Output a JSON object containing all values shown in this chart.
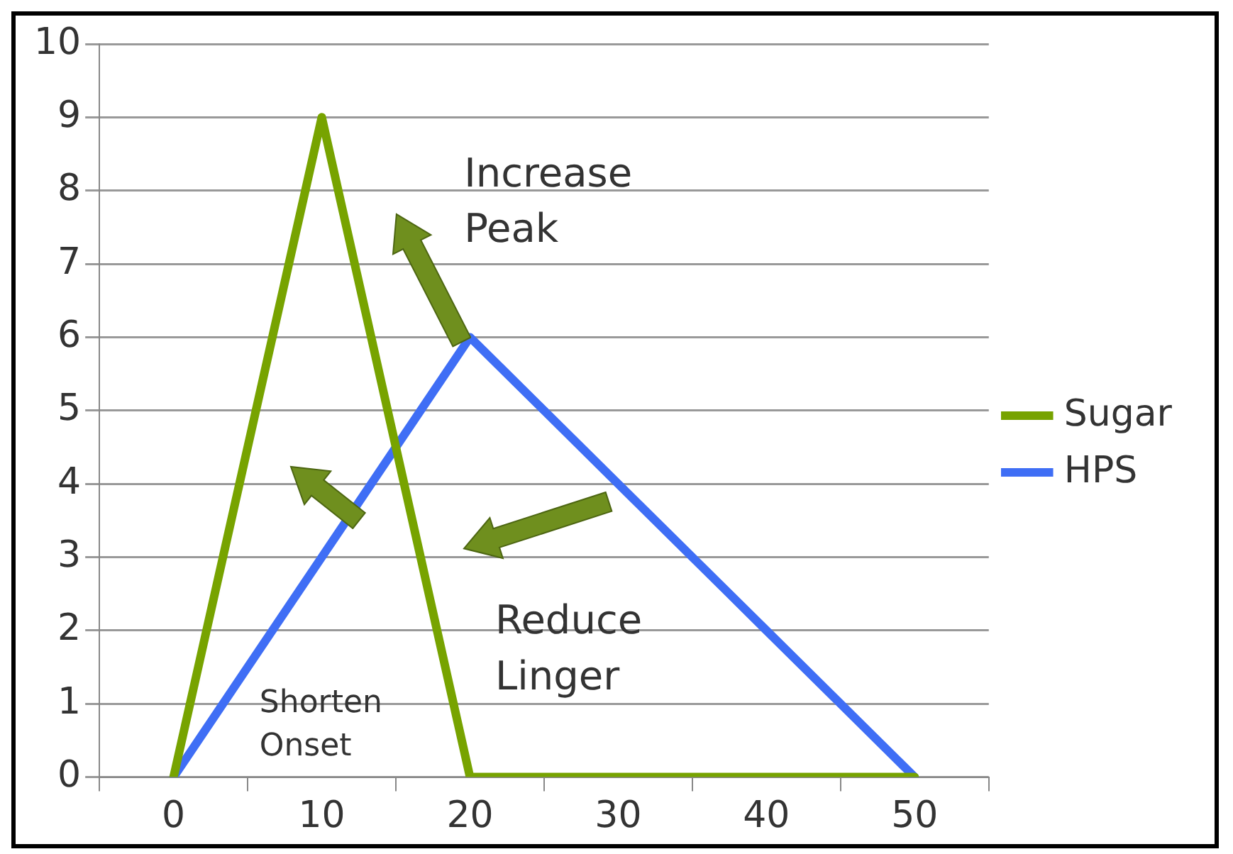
{
  "chart_data": {
    "type": "line",
    "categories": [
      "0",
      "10",
      "20",
      "30",
      "40",
      "50"
    ],
    "series": [
      {
        "name": "Sugar",
        "color": "#77a300",
        "values": [
          0,
          9,
          0,
          0,
          0,
          0
        ]
      },
      {
        "name": "HPS",
        "color": "#3f6ef5",
        "values": [
          0,
          3,
          6,
          4,
          2,
          0
        ]
      }
    ],
    "ylim": [
      0,
      10
    ],
    "yticks": [
      0,
      1,
      2,
      3,
      4,
      5,
      6,
      7,
      8,
      9,
      10
    ],
    "grid": "y",
    "legend": "right",
    "marker": "none",
    "line_style": "solid",
    "annotations": [
      "Increase Peak",
      "Reduce Linger",
      "Shorten Onset"
    ]
  }
}
